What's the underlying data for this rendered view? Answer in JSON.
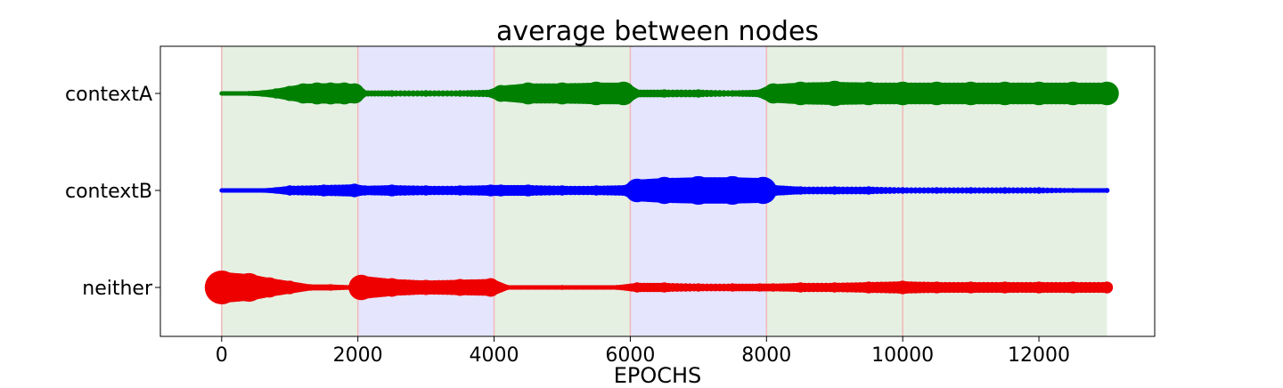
{
  "chart_data": {
    "type": "scatter",
    "title": "average between nodes",
    "xlabel": "EPOCHS",
    "ylabel": "",
    "xlim": [
      -900,
      13700
    ],
    "xticks": [
      0,
      2000,
      4000,
      6000,
      8000,
      10000,
      12000
    ],
    "xtick_labels": [
      "0",
      "2000",
      "4000",
      "6000",
      "8000",
      "10000",
      "12000"
    ],
    "categories": [
      "contextA",
      "contextB",
      "neither"
    ],
    "grid": false,
    "legend": "none",
    "background_bands": [
      {
        "start": 0,
        "end": 2000,
        "context": "contextA",
        "color": "#e5f0e3"
      },
      {
        "start": 2000,
        "end": 4000,
        "context": "contextB",
        "color": "#e5e5fd"
      },
      {
        "start": 4000,
        "end": 6000,
        "context": "contextA",
        "color": "#e5f0e3"
      },
      {
        "start": 6000,
        "end": 8000,
        "context": "contextB",
        "color": "#e5e5fd"
      },
      {
        "start": 8000,
        "end": 13000,
        "context": "contextA",
        "color": "#e5f0e3"
      }
    ],
    "band_boundaries": [
      0,
      2000,
      4000,
      6000,
      8000,
      10000
    ],
    "boundary_color": "#f2b8b8",
    "series": [
      {
        "name": "contextA",
        "color": "#008000",
        "x": [
          0,
          400,
          600,
          800,
          1000,
          1200,
          1400,
          1600,
          1800,
          1950,
          2100,
          2500,
          3000,
          3500,
          3950,
          4100,
          4500,
          5000,
          5500,
          5900,
          6100,
          6500,
          7000,
          7500,
          7900,
          8100,
          8500,
          9000,
          9500,
          10000,
          10500,
          11000,
          11500,
          12000,
          12500,
          13000
        ],
        "size": [
          0.05,
          0.15,
          0.2,
          0.3,
          0.45,
          0.6,
          0.65,
          0.65,
          0.65,
          0.6,
          0.2,
          0.2,
          0.2,
          0.2,
          0.25,
          0.5,
          0.65,
          0.65,
          0.7,
          0.7,
          0.25,
          0.25,
          0.25,
          0.2,
          0.25,
          0.6,
          0.7,
          0.75,
          0.7,
          0.7,
          0.7,
          0.7,
          0.7,
          0.7,
          0.7,
          0.7
        ]
      },
      {
        "name": "contextB",
        "color": "#0000ff",
        "x": [
          0,
          500,
          800,
          1000,
          1500,
          1950,
          2100,
          2500,
          3000,
          3500,
          3950,
          4100,
          4500,
          5000,
          5500,
          5950,
          6100,
          6500,
          7000,
          7500,
          7950,
          8100,
          8500,
          9000,
          9500,
          10000,
          10500,
          11000,
          11500,
          12000,
          12500,
          13000
        ],
        "size": [
          0.05,
          0.12,
          0.2,
          0.3,
          0.35,
          0.4,
          0.3,
          0.35,
          0.3,
          0.3,
          0.35,
          0.35,
          0.35,
          0.3,
          0.3,
          0.35,
          0.7,
          0.8,
          0.85,
          0.85,
          0.8,
          0.35,
          0.25,
          0.25,
          0.25,
          0.2,
          0.2,
          0.2,
          0.2,
          0.2,
          0.15,
          0.15
        ]
      },
      {
        "name": "neither",
        "color": "#ee0000",
        "x": [
          0,
          400,
          700,
          1000,
          1300,
          1600,
          1900,
          2050,
          2500,
          3000,
          3500,
          3950,
          4200,
          5000,
          5800,
          6100,
          6500,
          7000,
          7500,
          7900,
          8100,
          8500,
          9000,
          9500,
          10000,
          10500,
          11000,
          11500,
          12000,
          12500,
          13000
        ],
        "size": [
          1.0,
          0.85,
          0.6,
          0.4,
          0.2,
          0.2,
          0.15,
          0.75,
          0.55,
          0.45,
          0.5,
          0.55,
          0.15,
          0.15,
          0.15,
          0.3,
          0.3,
          0.25,
          0.25,
          0.25,
          0.25,
          0.3,
          0.3,
          0.35,
          0.4,
          0.35,
          0.35,
          0.35,
          0.35,
          0.35,
          0.35
        ]
      }
    ]
  }
}
